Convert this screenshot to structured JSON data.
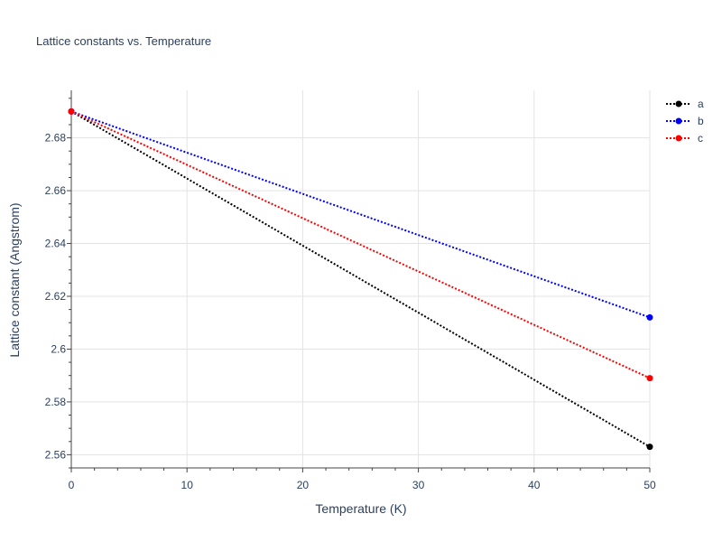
{
  "chart_data": {
    "type": "line",
    "title": "Lattice constants vs. Temperature",
    "xlabel": "Temperature (K)",
    "ylabel": "Lattice constant (Angstrom)",
    "xlim": [
      0,
      50
    ],
    "ylim": [
      2.555,
      2.698
    ],
    "xticks": [
      0,
      10,
      20,
      30,
      40,
      50
    ],
    "xtick_labels": [
      "0",
      "10",
      "20",
      "30",
      "40",
      "50"
    ],
    "yticks": [
      2.56,
      2.58,
      2.6,
      2.62,
      2.64,
      2.66,
      2.68
    ],
    "ytick_labels": [
      "2.56",
      "2.58",
      "2.6",
      "2.62",
      "2.64",
      "2.66",
      "2.68"
    ],
    "grid": true,
    "legend_position": "top-right",
    "series": [
      {
        "name": "a",
        "color": "#000000",
        "x": [
          0,
          50
        ],
        "y": [
          2.69,
          2.563
        ]
      },
      {
        "name": "b",
        "color": "#0000ff",
        "x": [
          0,
          50
        ],
        "y": [
          2.69,
          2.612
        ]
      },
      {
        "name": "c",
        "color": "#ff0000",
        "x": [
          0,
          50
        ],
        "y": [
          2.69,
          2.589
        ]
      }
    ]
  }
}
